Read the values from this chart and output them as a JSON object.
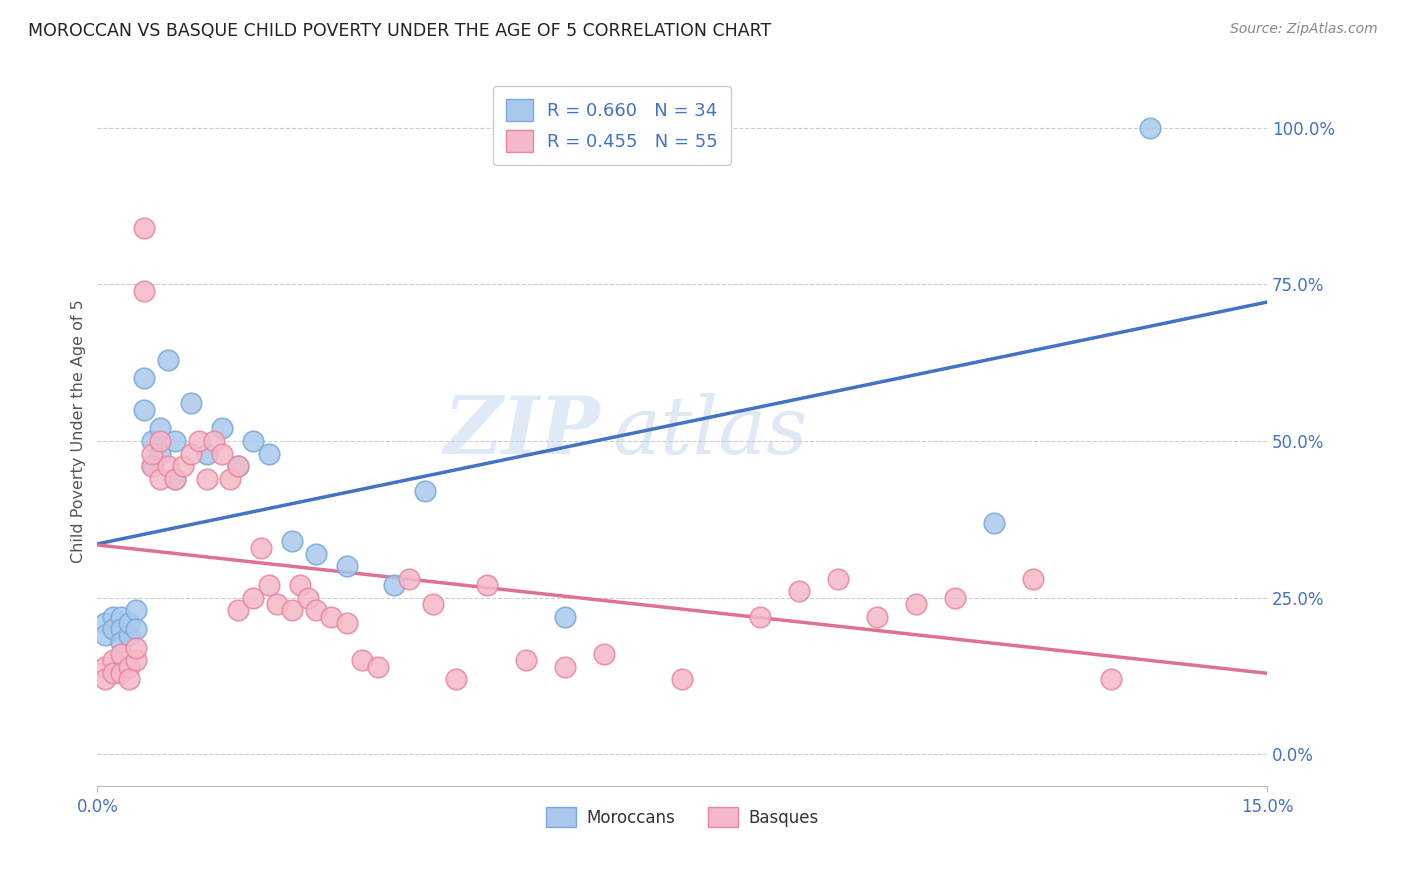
{
  "title": "MOROCCAN VS BASQUE CHILD POVERTY UNDER THE AGE OF 5 CORRELATION CHART",
  "source": "Source: ZipAtlas.com",
  "ylabel": "Child Poverty Under the Age of 5",
  "xlim": [
    0.0,
    0.15
  ],
  "ylim": [
    -0.05,
    1.08
  ],
  "yticks_right": [
    0.0,
    0.25,
    0.5,
    0.75,
    1.0
  ],
  "yticklabels_right": [
    "0.0%",
    "25.0%",
    "50.0%",
    "75.0%",
    "100.0%"
  ],
  "moroccan_color": "#aac8ee",
  "basque_color": "#f5b8c8",
  "moroccan_edge": "#7aaad8",
  "basque_edge": "#e888a0",
  "line_blue": "#4472c4",
  "line_pink": "#e07090",
  "legend_blue_label": "R = 0.660   N = 34",
  "legend_pink_label": "R = 0.455   N = 55",
  "watermark_zip": "ZIP",
  "watermark_atlas": "atlas",
  "background_color": "#ffffff",
  "grid_color": "#cccccc",
  "moroccan_x": [
    0.001,
    0.001,
    0.002,
    0.002,
    0.003,
    0.003,
    0.003,
    0.004,
    0.004,
    0.005,
    0.005,
    0.006,
    0.006,
    0.007,
    0.007,
    0.008,
    0.008,
    0.009,
    0.01,
    0.01,
    0.012,
    0.014,
    0.016,
    0.018,
    0.02,
    0.022,
    0.025,
    0.028,
    0.032,
    0.038,
    0.042,
    0.06,
    0.115,
    0.135
  ],
  "moroccan_y": [
    0.21,
    0.19,
    0.22,
    0.2,
    0.22,
    0.2,
    0.18,
    0.19,
    0.21,
    0.23,
    0.2,
    0.55,
    0.6,
    0.5,
    0.46,
    0.52,
    0.48,
    0.63,
    0.5,
    0.44,
    0.56,
    0.48,
    0.52,
    0.46,
    0.5,
    0.48,
    0.34,
    0.32,
    0.3,
    0.27,
    0.42,
    0.22,
    0.37,
    1.0
  ],
  "basque_x": [
    0.001,
    0.001,
    0.002,
    0.002,
    0.003,
    0.003,
    0.004,
    0.004,
    0.005,
    0.005,
    0.006,
    0.006,
    0.007,
    0.007,
    0.008,
    0.008,
    0.009,
    0.01,
    0.011,
    0.012,
    0.013,
    0.014,
    0.015,
    0.016,
    0.017,
    0.018,
    0.018,
    0.02,
    0.021,
    0.022,
    0.023,
    0.025,
    0.026,
    0.027,
    0.028,
    0.03,
    0.032,
    0.034,
    0.036,
    0.04,
    0.043,
    0.046,
    0.05,
    0.055,
    0.06,
    0.065,
    0.075,
    0.085,
    0.09,
    0.095,
    0.1,
    0.105,
    0.11,
    0.12,
    0.13
  ],
  "basque_y": [
    0.14,
    0.12,
    0.15,
    0.13,
    0.16,
    0.13,
    0.14,
    0.12,
    0.15,
    0.17,
    0.84,
    0.74,
    0.46,
    0.48,
    0.44,
    0.5,
    0.46,
    0.44,
    0.46,
    0.48,
    0.5,
    0.44,
    0.5,
    0.48,
    0.44,
    0.46,
    0.23,
    0.25,
    0.33,
    0.27,
    0.24,
    0.23,
    0.27,
    0.25,
    0.23,
    0.22,
    0.21,
    0.15,
    0.14,
    0.28,
    0.24,
    0.12,
    0.27,
    0.15,
    0.14,
    0.16,
    0.12,
    0.22,
    0.26,
    0.28,
    0.22,
    0.24,
    0.25,
    0.28,
    0.12
  ]
}
